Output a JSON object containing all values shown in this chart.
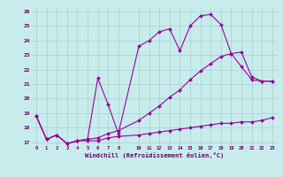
{
  "xlabel": "Windchill (Refroidissement éolien,°C)",
  "background_color": "#c8ecec",
  "grid_color": "#a8d0d0",
  "line_color": "#990099",
  "xlim": [
    -0.5,
    23.5
  ],
  "ylim": [
    16.8,
    26.3
  ],
  "xticks": [
    0,
    1,
    2,
    3,
    4,
    5,
    6,
    7,
    8,
    10,
    11,
    12,
    13,
    14,
    15,
    16,
    17,
    18,
    19,
    20,
    21,
    22,
    23
  ],
  "yticks": [
    17,
    18,
    19,
    20,
    21,
    22,
    23,
    24,
    25,
    26
  ],
  "line1_x": [
    0,
    1,
    2,
    3,
    4,
    5,
    6,
    7,
    8,
    10,
    11,
    12,
    13,
    14,
    15,
    16,
    17,
    18,
    19,
    20,
    21,
    22,
    23
  ],
  "line1_y": [
    18.8,
    17.2,
    17.5,
    16.9,
    17.1,
    17.2,
    21.4,
    19.6,
    17.6,
    23.6,
    24.0,
    24.6,
    24.8,
    23.3,
    25.0,
    25.7,
    25.8,
    25.1,
    23.1,
    22.2,
    21.3,
    21.2,
    21.2
  ],
  "line2_x": [
    0,
    1,
    2,
    3,
    4,
    5,
    6,
    7,
    8,
    10,
    11,
    12,
    13,
    14,
    15,
    16,
    17,
    18,
    19,
    20,
    21,
    22,
    23
  ],
  "line2_y": [
    18.8,
    17.2,
    17.5,
    16.9,
    17.1,
    17.2,
    17.3,
    17.6,
    17.8,
    18.5,
    19.0,
    19.5,
    20.1,
    20.6,
    21.3,
    21.9,
    22.4,
    22.9,
    23.1,
    23.2,
    21.5,
    21.2,
    21.2
  ],
  "line3_x": [
    0,
    1,
    2,
    3,
    4,
    5,
    6,
    7,
    8,
    10,
    11,
    12,
    13,
    14,
    15,
    16,
    17,
    18,
    19,
    20,
    21,
    22,
    23
  ],
  "line3_y": [
    18.8,
    17.2,
    17.5,
    16.9,
    17.1,
    17.1,
    17.1,
    17.3,
    17.4,
    17.5,
    17.6,
    17.7,
    17.8,
    17.9,
    18.0,
    18.1,
    18.2,
    18.3,
    18.3,
    18.4,
    18.4,
    18.5,
    18.7
  ]
}
